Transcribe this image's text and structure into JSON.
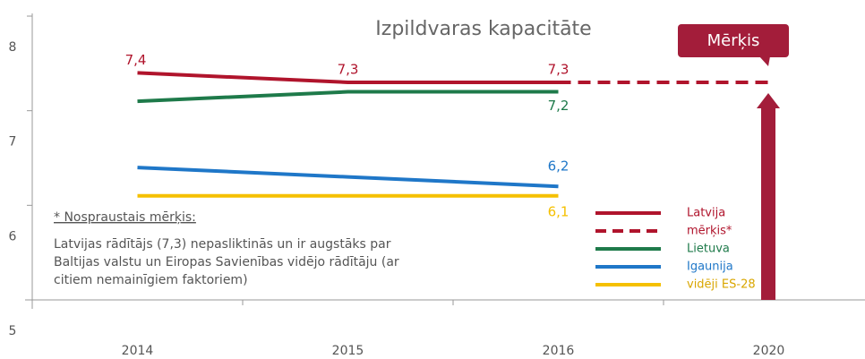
{
  "chart_data": {
    "type": "line",
    "title": "Izpildvaras kapacitāte",
    "categories": [
      "2014",
      "2015",
      "2016",
      "2020"
    ],
    "ylim": [
      5,
      8
    ],
    "yticks": [
      5,
      6,
      7,
      8
    ],
    "series": [
      {
        "name": "Latvija",
        "color": "#b0142c",
        "values": [
          7.4,
          7.3,
          7.3,
          null
        ],
        "value_labels": [
          "7,4",
          "7,3",
          "7,3",
          null
        ]
      },
      {
        "name": "mērķis*",
        "color": "#b0142c",
        "dashed": true,
        "values": [
          null,
          null,
          7.3,
          7.3
        ]
      },
      {
        "name": "Lietuva",
        "color": "#1e7a4a",
        "values": [
          7.1,
          7.2,
          7.2,
          null
        ],
        "value_labels": [
          null,
          null,
          "7,2",
          null
        ]
      },
      {
        "name": "Igaunija",
        "color": "#1f77c8",
        "values": [
          6.4,
          6.3,
          6.2,
          null
        ],
        "value_labels": [
          null,
          null,
          "6,2",
          null
        ]
      },
      {
        "name": "vidēji ES-28",
        "color": "#f5c000",
        "values": [
          6.1,
          6.1,
          6.1,
          null
        ],
        "value_labels": [
          null,
          null,
          "6,1",
          null
        ]
      }
    ],
    "callout": "Mērķis",
    "note_title": "* Nospraustais mērķis:",
    "note_lines": [
      "Latvijas rādītājs (7,3) nepasliktinās un ir augstāks par",
      "Baltijas valstu un Eiropas Savienības vidējo rādītāju (ar",
      "citiem nemainīgiem faktoriem)"
    ]
  }
}
